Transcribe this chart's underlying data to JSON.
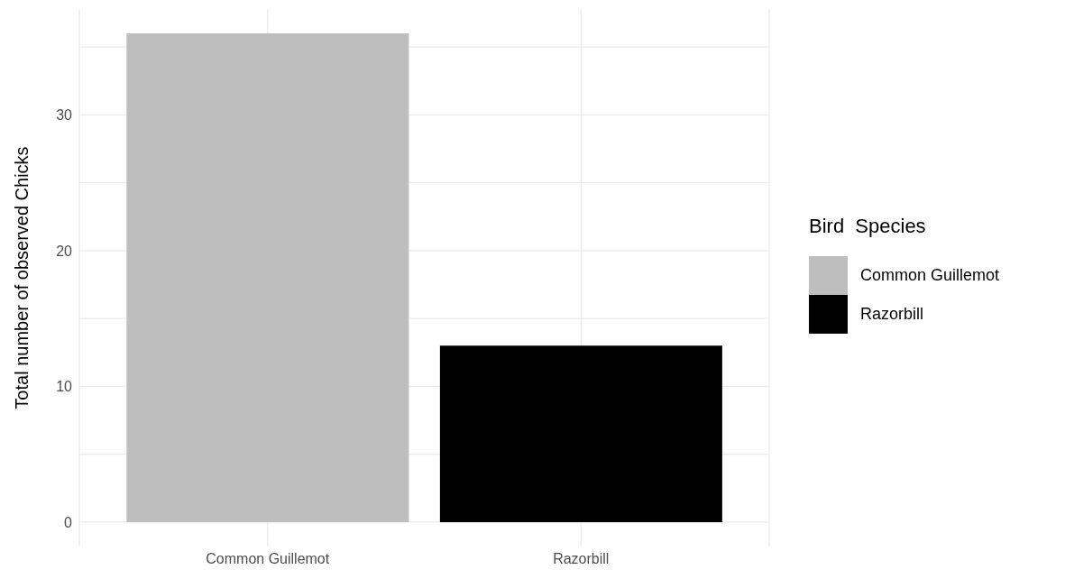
{
  "chart_data": {
    "type": "bar",
    "categories": [
      "Common Guillemot",
      "Razorbill"
    ],
    "stacked": true,
    "series": [
      {
        "name": "Common Guillemot",
        "color": "#bebebe",
        "values": [
          36,
          null
        ]
      },
      {
        "name": "Razorbill",
        "color": "#000000",
        "values": [
          null,
          13
        ]
      }
    ],
    "ylabel": "Total number of observed Chicks",
    "legend_title": "Bird  Species",
    "legend": "right",
    "ylim": [
      -1.8,
      37.8
    ],
    "yticks": [
      0,
      {
        "value": 5,
        "label": null
      },
      10,
      {
        "value": 15,
        "label": null
      },
      20,
      {
        "value": 25,
        "label": null
      },
      30,
      {
        "value": 35,
        "label": null
      }
    ],
    "grid": true
  }
}
